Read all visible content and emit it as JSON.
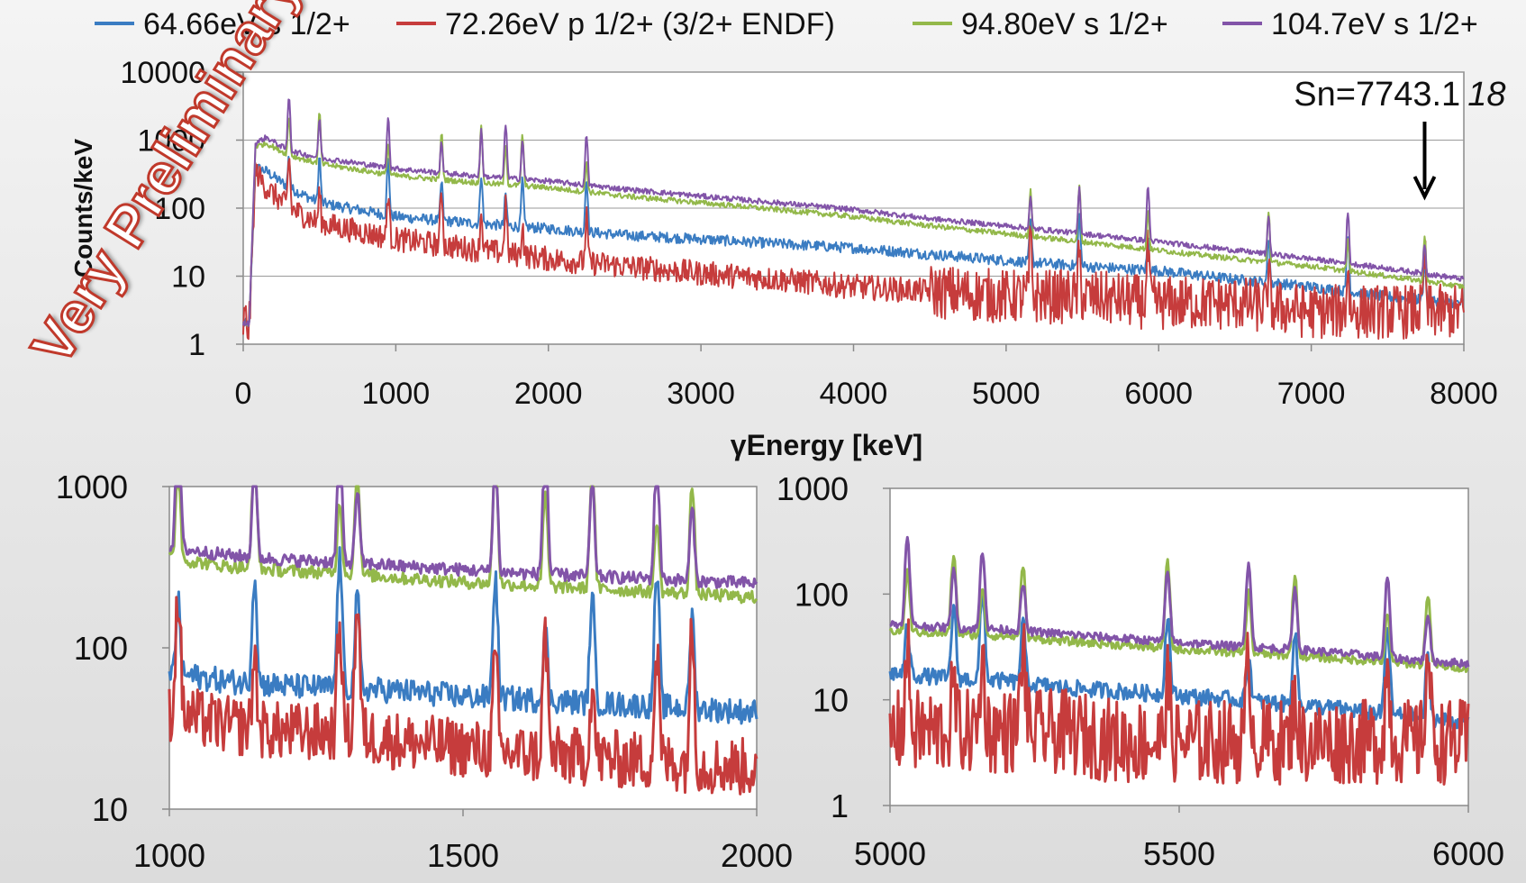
{
  "watermark": "Very Preliminary",
  "colors": {
    "blue": "#3a7cc2",
    "red": "#c63c3c",
    "green": "#93b84a",
    "purple": "#8254a8"
  },
  "legend": [
    {
      "label": "64.66eV s 1/2+",
      "color": "#3a7cc2"
    },
    {
      "label": "72.26eV p 1/2+ (3/2+ ENDF)",
      "color": "#c63c3c"
    },
    {
      "label": "94.80eV s 1/2+",
      "color": "#93b84a"
    },
    {
      "label": "104.7eV s 1/2+",
      "color": "#8254a8"
    }
  ],
  "chart_data": [
    {
      "id": "main",
      "type": "line",
      "scale": "log",
      "xlabel": "γEnergy [keV]",
      "ylabel": "Counts/keV",
      "xlim": [
        0,
        8000
      ],
      "ylim": [
        1,
        10000
      ],
      "xticks": [
        0,
        1000,
        2000,
        3000,
        4000,
        5000,
        6000,
        7000,
        8000
      ],
      "yticks": [
        1,
        10,
        100,
        1000,
        10000
      ],
      "grid": true,
      "annotation": {
        "text": "Sn=7743.1",
        "suffix": "18",
        "x": 7743
      },
      "series": [
        {
          "name": "64.66eV s 1/2+",
          "color": "#3a7cc2",
          "x": [
            40,
            80,
            150,
            300,
            500,
            1000,
            1500,
            2000,
            2500,
            3000,
            3500,
            4000,
            4500,
            5000,
            5500,
            6000,
            6500,
            7000,
            7500,
            8000
          ],
          "y": [
            2,
            400,
            350,
            200,
            120,
            75,
            60,
            50,
            40,
            35,
            30,
            26,
            21,
            17,
            14,
            12,
            9,
            7,
            5,
            4
          ]
        },
        {
          "name": "72.26eV p 1/2+ (3/2+ ENDF)",
          "color": "#c63c3c",
          "x": [
            40,
            80,
            150,
            300,
            500,
            1000,
            1500,
            2000,
            2500,
            3000,
            3500,
            4000,
            4500,
            5000,
            5500,
            6000,
            6500,
            7000,
            7500,
            8000
          ],
          "y": [
            2,
            350,
            200,
            100,
            60,
            35,
            25,
            18,
            14,
            11,
            9,
            7,
            6,
            5,
            5,
            4,
            4,
            3,
            3,
            3
          ]
        },
        {
          "name": "94.80eV s 1/2+",
          "color": "#93b84a",
          "x": [
            40,
            80,
            150,
            300,
            500,
            1000,
            1500,
            2000,
            2500,
            3000,
            3500,
            4000,
            4500,
            5000,
            5500,
            6000,
            6500,
            7000,
            7500,
            8000
          ],
          "y": [
            2,
            800,
            900,
            600,
            450,
            300,
            240,
            200,
            150,
            120,
            95,
            75,
            55,
            42,
            32,
            24,
            18,
            14,
            10,
            7
          ]
        },
        {
          "name": "104.7eV s 1/2+",
          "color": "#8254a8",
          "x": [
            40,
            80,
            150,
            300,
            500,
            1000,
            1500,
            2000,
            2500,
            3000,
            3500,
            4000,
            4500,
            5000,
            5500,
            6000,
            6500,
            7000,
            7500,
            8000
          ],
          "y": [
            2,
            900,
            1100,
            700,
            550,
            380,
            300,
            250,
            190,
            150,
            120,
            95,
            70,
            55,
            42,
            32,
            24,
            18,
            13,
            9
          ]
        }
      ],
      "peaks": [
        300,
        500,
        950,
        1300,
        1560,
        1720,
        1830,
        2250,
        5160,
        5480,
        5930,
        6720,
        7240,
        7743
      ]
    },
    {
      "id": "zoom1",
      "type": "line",
      "scale": "log",
      "xlabel": "",
      "ylabel": "",
      "xlim": [
        1000,
        2000
      ],
      "ylim": [
        10,
        1000
      ],
      "xticks": [
        1000,
        1500,
        2000
      ],
      "yticks": [
        10,
        100,
        1000
      ],
      "grid": false,
      "series": [
        {
          "name": "64.66eV s 1/2+",
          "color": "#3a7cc2",
          "x": [
            1000,
            1100,
            1200,
            1300,
            1400,
            1500,
            1600,
            1700,
            1800,
            1900,
            2000
          ],
          "y": [
            70,
            62,
            58,
            56,
            54,
            50,
            48,
            46,
            44,
            42,
            40
          ]
        },
        {
          "name": "72.26eV p 1/2+ (3/2+ ENDF)",
          "color": "#c63c3c",
          "x": [
            1000,
            1100,
            1200,
            1300,
            1400,
            1500,
            1600,
            1700,
            1800,
            1900,
            2000
          ],
          "y": [
            40,
            33,
            30,
            30,
            26,
            24,
            22,
            21,
            20,
            19,
            18
          ]
        },
        {
          "name": "94.80eV s 1/2+",
          "color": "#93b84a",
          "x": [
            1000,
            1100,
            1200,
            1300,
            1400,
            1500,
            1600,
            1700,
            1800,
            1900,
            2000
          ],
          "y": [
            360,
            320,
            300,
            290,
            270,
            255,
            245,
            235,
            225,
            215,
            205
          ]
        },
        {
          "name": "104.7eV s 1/2+",
          "color": "#8254a8",
          "x": [
            1000,
            1100,
            1200,
            1300,
            1400,
            1500,
            1600,
            1700,
            1800,
            1900,
            2000
          ],
          "y": [
            420,
            375,
            350,
            340,
            320,
            305,
            290,
            280,
            270,
            260,
            250
          ]
        }
      ],
      "peaks": [
        1015,
        1145,
        1290,
        1320,
        1555,
        1640,
        1720,
        1830,
        1890
      ]
    },
    {
      "id": "zoom2",
      "type": "line",
      "scale": "log",
      "xlabel": "",
      "ylabel": "",
      "xlim": [
        5000,
        6000
      ],
      "ylim": [
        1,
        1000
      ],
      "xticks": [
        5000,
        5500,
        6000
      ],
      "yticks": [
        1,
        10,
        100,
        1000
      ],
      "grid": false,
      "series": [
        {
          "name": "64.66eV s 1/2+",
          "color": "#3a7cc2",
          "x": [
            5000,
            5100,
            5200,
            5300,
            5400,
            5500,
            5600,
            5700,
            5800,
            5900,
            6000
          ],
          "y": [
            18,
            16,
            15,
            13,
            12,
            11,
            10,
            9,
            8,
            7,
            6
          ]
        },
        {
          "name": "72.26eV p 1/2+ (3/2+ ENDF)",
          "color": "#c63c3c",
          "x": [
            5000,
            5100,
            5200,
            5300,
            5400,
            5500,
            5600,
            5700,
            5800,
            5900,
            6000
          ],
          "y": [
            5,
            5,
            5,
            5,
            4,
            4,
            4,
            4,
            4,
            4,
            4
          ]
        },
        {
          "name": "94.80eV s 1/2+",
          "color": "#93b84a",
          "x": [
            5000,
            5100,
            5200,
            5300,
            5400,
            5500,
            5600,
            5700,
            5800,
            5900,
            6000
          ],
          "y": [
            45,
            42,
            40,
            36,
            33,
            30,
            28,
            26,
            24,
            22,
            20
          ]
        },
        {
          "name": "104.7eV s 1/2+",
          "color": "#8254a8",
          "x": [
            5000,
            5100,
            5200,
            5300,
            5400,
            5500,
            5600,
            5700,
            5800,
            5900,
            6000
          ],
          "y": [
            52,
            48,
            46,
            42,
            38,
            35,
            32,
            30,
            27,
            24,
            22
          ]
        }
      ],
      "peaks": [
        5030,
        5110,
        5160,
        5230,
        5480,
        5620,
        5700,
        5860,
        5930
      ]
    }
  ]
}
